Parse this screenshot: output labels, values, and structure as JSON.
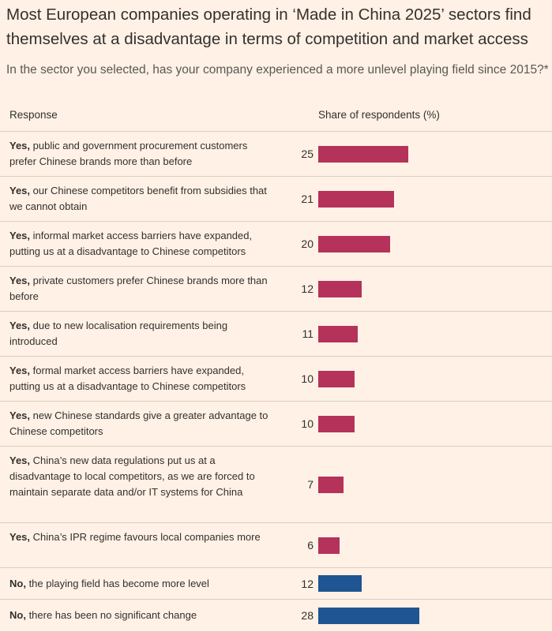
{
  "title": "Most European companies operating in ‘Made in China 2025’ sectors find themselves at a disadvantage in terms of competition and market access",
  "subtitle": "In the sector you selected, has your company experienced a more unlevel playing field since 2015?*",
  "chart_data": {
    "type": "bar",
    "orientation": "horizontal",
    "title": "Most European companies operating in ‘Made in China 2025’ sectors find themselves at a disadvantage in terms of competition and market access",
    "subtitle": "In the sector you selected, has your company experienced a more unlevel playing field since 2015?*",
    "column_headers": {
      "response": "Response",
      "share": "Share of respondents (%)"
    },
    "xlim": [
      0,
      28
    ],
    "colors": {
      "yes": "#b5325b",
      "no": "#1f5592"
    },
    "rows": [
      {
        "lead": "Yes,",
        "text": " public and government procurement customers prefer Chinese brands more than before",
        "value": 25,
        "group": "yes"
      },
      {
        "lead": "Yes,",
        "text": " our Chinese competitors benefit from subsidies that we cannot obtain",
        "value": 21,
        "group": "yes"
      },
      {
        "lead": "Yes,",
        "text": " informal market access barriers have expanded, putting us at a disadvantage to Chinese competitors",
        "value": 20,
        "group": "yes"
      },
      {
        "lead": "Yes,",
        "text": " private customers prefer Chinese brands more than before",
        "value": 12,
        "group": "yes"
      },
      {
        "lead": "Yes,",
        "text": " due to new localisation requirements being introduced",
        "value": 11,
        "group": "yes"
      },
      {
        "lead": "Yes,",
        "text": " formal market access barriers have expanded, putting us at a disadvantage to Chinese competitors",
        "value": 10,
        "group": "yes"
      },
      {
        "lead": "Yes,",
        "text": " new Chinese standards give a greater advantage to Chinese competitors",
        "value": 10,
        "group": "yes"
      },
      {
        "lead": "Yes,",
        "text": " China’s new data regulations put us at a disadvantage to local competitors, as we are forced to maintain separate data and/or IT systems for China",
        "value": 7,
        "group": "yes"
      },
      {
        "lead": "Yes,",
        "text": " China’s IPR regime favours local companies more",
        "value": 6,
        "group": "yes"
      },
      {
        "lead": "No,",
        "text": " the playing field has become more level",
        "value": 12,
        "group": "no"
      },
      {
        "lead": "No,",
        "text": " there has been no significant change",
        "value": 28,
        "group": "no"
      }
    ]
  }
}
